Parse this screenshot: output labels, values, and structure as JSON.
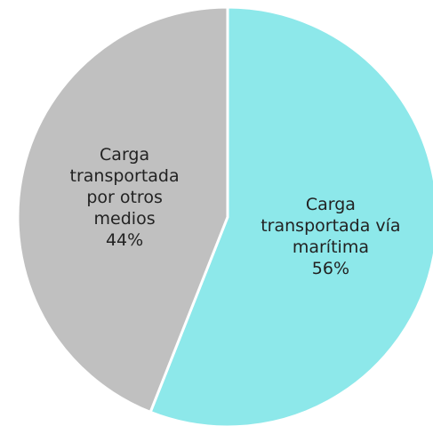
{
  "chart_data": {
    "type": "pie",
    "categories": [
      "Carga transportada vía marítima",
      "Carga transportada por otros medios"
    ],
    "values": [
      56,
      44
    ],
    "value_labels": [
      "56%",
      "44%"
    ],
    "colors": [
      "#8de8ea",
      "#c0c0c0"
    ]
  }
}
